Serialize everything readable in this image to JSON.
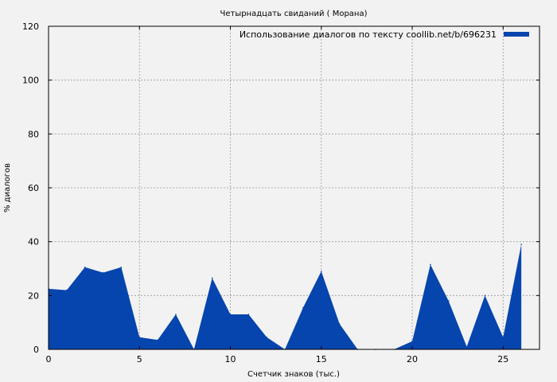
{
  "chart_data": {
    "type": "area",
    "title": "Четырнадцать свиданий ( Морана)",
    "xlabel": "Счетчик знаков (тыс.)",
    "ylabel": "% диалогов",
    "xlim": [
      0,
      27
    ],
    "ylim": [
      0,
      120
    ],
    "xticks": [
      0,
      5,
      10,
      15,
      20,
      25
    ],
    "yticks": [
      0,
      20,
      40,
      60,
      80,
      100,
      120
    ],
    "grid": true,
    "legend_position": "top-right",
    "series": [
      {
        "name": "Использование диалогов по тексту coollib.net/b/696231",
        "color": "#0645ad",
        "x": [
          0,
          1,
          2,
          3,
          4,
          5,
          6,
          7,
          8,
          9,
          10,
          11,
          12,
          13,
          14,
          15,
          16,
          17,
          18,
          19,
          20,
          21,
          22,
          23,
          24,
          25,
          26
        ],
        "y": [
          22.5,
          22,
          30.5,
          28.5,
          30.5,
          4.5,
          3.5,
          13,
          0,
          26.5,
          13,
          13,
          4.5,
          0,
          15.5,
          29,
          9.5,
          0,
          0,
          0,
          3,
          31.5,
          18,
          1,
          20,
          4.5,
          39
        ]
      }
    ]
  }
}
